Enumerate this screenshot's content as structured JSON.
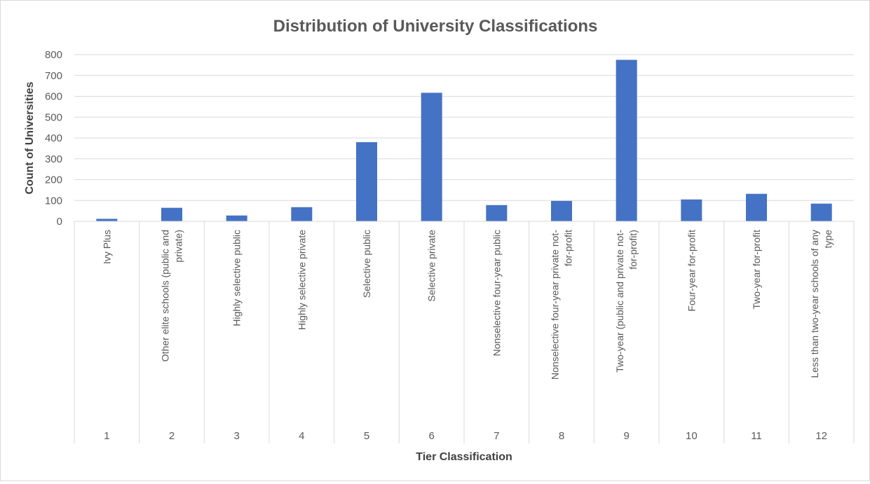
{
  "chart_data": {
    "type": "bar",
    "title": "Distribution of University Classifications",
    "xlabel": "Tier Classification",
    "ylabel": "Count of Universities",
    "ylim": [
      0,
      800
    ],
    "yticks": [
      0,
      100,
      200,
      300,
      400,
      500,
      600,
      700,
      800
    ],
    "grid": true,
    "bar_color": "#4472c4",
    "categories": [
      "1",
      "2",
      "3",
      "4",
      "5",
      "6",
      "7",
      "8",
      "9",
      "10",
      "11",
      "12"
    ],
    "category_names": [
      [
        "Ivy Plus"
      ],
      [
        "Other elite schools (public and",
        "private)"
      ],
      [
        "Highly selective public"
      ],
      [
        "Highly selective private"
      ],
      [
        "Selective public"
      ],
      [
        "Selective private"
      ],
      [
        "Nonselective four-year public"
      ],
      [
        "Nonselective four-year private not-",
        "for-profit"
      ],
      [
        "Two-year (public and private not-",
        "for-profit)"
      ],
      [
        "Four-year for-profit"
      ],
      [
        "Two-year for-profit"
      ],
      [
        "Less than two-year schools of any",
        "type"
      ]
    ],
    "values": [
      12,
      65,
      28,
      68,
      380,
      617,
      78,
      98,
      775,
      105,
      132,
      85
    ]
  }
}
